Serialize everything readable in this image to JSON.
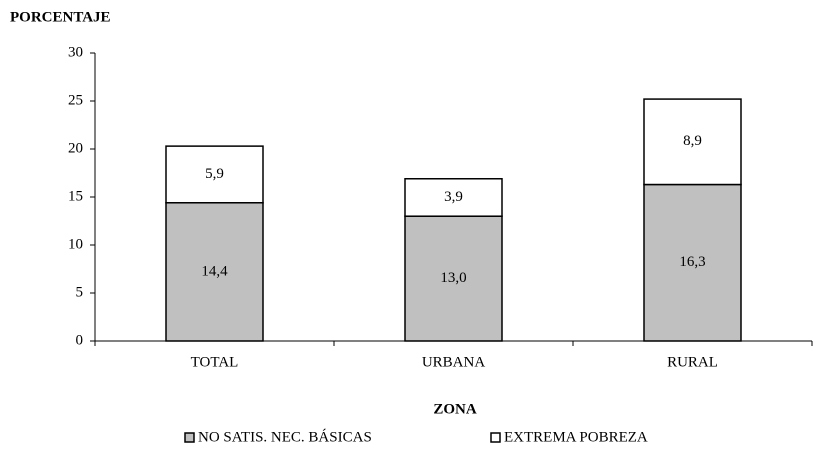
{
  "chart_data": {
    "type": "bar",
    "stacked": true,
    "y_label": "PORCENTAJE",
    "x_label": "ZONA",
    "categories": [
      "TOTAL",
      "URBANA",
      "RURAL"
    ],
    "series": [
      {
        "name": "NO SATIS. NEC. BÁSICAS",
        "color": "#c0c0c0",
        "values": [
          14.4,
          13.0,
          16.3
        ],
        "value_labels": [
          "14,4",
          "13,0",
          "16,3"
        ]
      },
      {
        "name": "EXTREMA POBREZA",
        "color": "#ffffff",
        "values": [
          5.9,
          3.9,
          8.9
        ],
        "value_labels": [
          "5,9",
          "3,9",
          "8,9"
        ]
      }
    ],
    "ylim": [
      0,
      30
    ],
    "yticks": [
      0,
      5,
      10,
      15,
      20,
      25,
      30
    ],
    "grid": false,
    "legend": "bottom"
  }
}
